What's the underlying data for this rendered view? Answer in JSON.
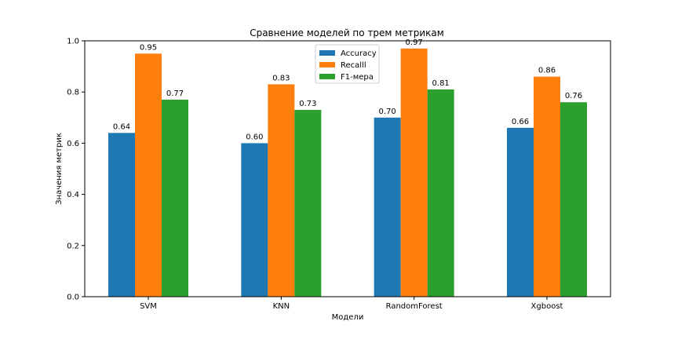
{
  "chart_data": {
    "type": "bar",
    "title": "Сравнение моделей по трем метрикам",
    "xlabel": "Модели",
    "ylabel": "Значения метрик",
    "categories": [
      "SVM",
      "KNN",
      "RandomForest",
      "Xgboost"
    ],
    "series": [
      {
        "name": "Accuracy",
        "color": "#1f77b4",
        "values": [
          0.64,
          0.6,
          0.7,
          0.66
        ],
        "labels": [
          "0.64",
          "0.60",
          "0.70",
          "0.66"
        ]
      },
      {
        "name": "Recalll",
        "color": "#ff7f0e",
        "values": [
          0.95,
          0.83,
          0.97,
          0.86
        ],
        "labels": [
          "0.95",
          "0.83",
          "0.97",
          "0.86"
        ]
      },
      {
        "name": "F1-мера",
        "color": "#2ca02c",
        "values": [
          0.77,
          0.73,
          0.81,
          0.76
        ],
        "labels": [
          "0.77",
          "0.73",
          "0.81",
          "0.76"
        ]
      }
    ],
    "ylim": [
      0,
      1.0
    ],
    "yticks": [
      "0.0",
      "0.2",
      "0.4",
      "0.6",
      "0.8",
      "1.0"
    ],
    "grid": false,
    "legend_position": "top-center"
  }
}
